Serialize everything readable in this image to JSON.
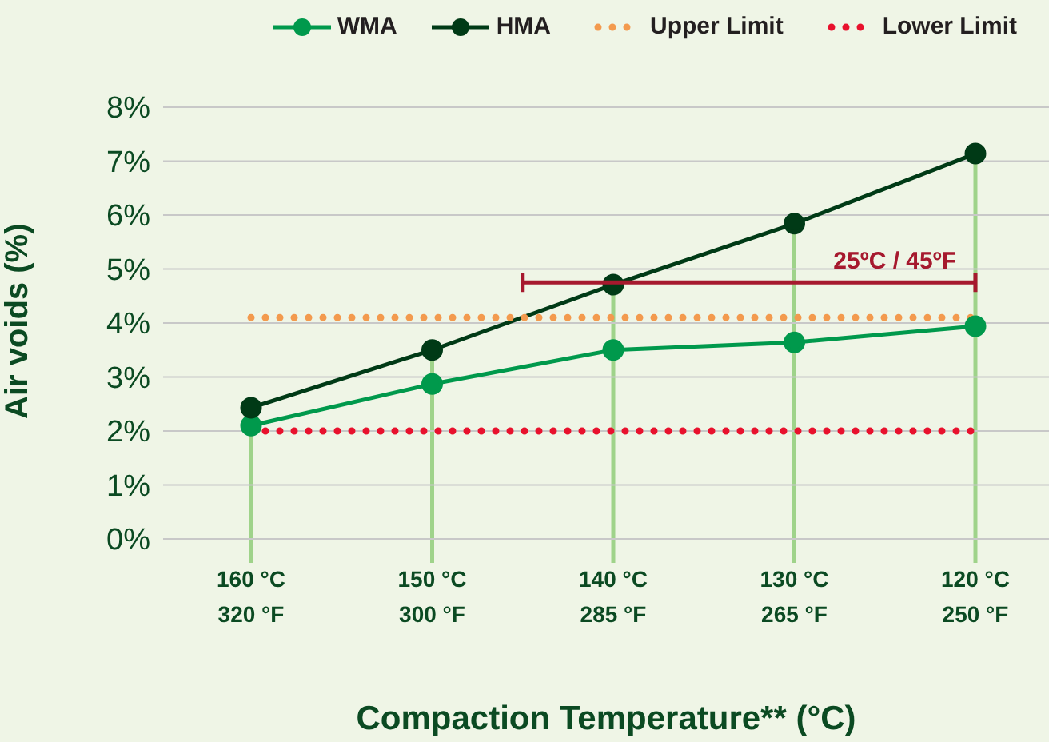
{
  "chart_data": {
    "type": "line",
    "xlabel": "Compaction Temperature** (°C)",
    "ylabel": "Air voids (%)",
    "categories": [
      "160 °C\n320 °F",
      "150 °C\n300 °F",
      "140 °C\n285 °F",
      "130 °C\n265 °F",
      "120 °C\n250 °F"
    ],
    "series": [
      {
        "name": "WMA",
        "color": "#00994c",
        "values": [
          2.1,
          2.87,
          3.5,
          3.64,
          3.94
        ]
      },
      {
        "name": "HMA",
        "color": "#003a16",
        "values": [
          2.43,
          3.5,
          4.71,
          5.84,
          7.14
        ]
      },
      {
        "name": "Upper Limit",
        "color": "#f39a4e",
        "values": [
          4.1,
          4.1,
          4.1,
          4.1,
          4.1
        ],
        "marker": "none",
        "line_style": "dotted"
      },
      {
        "name": "Lower Limit",
        "color": "#e8112d",
        "values": [
          2,
          2,
          2,
          2,
          2
        ],
        "marker": "none",
        "line_style": "dotted"
      }
    ],
    "ylim": [
      0,
      8
    ],
    "yticks": [
      {
        "value": 0,
        "label": "0%"
      },
      {
        "value": 1,
        "label": "1%"
      },
      {
        "value": 2,
        "label": "2%"
      },
      {
        "value": 3,
        "label": "3%"
      },
      {
        "value": 4,
        "label": "4%"
      },
      {
        "value": 5,
        "label": "5%"
      },
      {
        "value": 6,
        "label": "6%"
      },
      {
        "value": 7,
        "label": "7%"
      },
      {
        "value": 8,
        "label": "8%"
      }
    ],
    "grid": "y",
    "legend": "top right",
    "marker": "circle",
    "line_style": "solid",
    "ref_lines": [
      {
        "axis": "x",
        "value": "160 °C\n320 °F",
        "color": "#9fd38a"
      },
      {
        "axis": "x",
        "value": "150 °C\n300 °F",
        "color": "#9fd38a"
      },
      {
        "axis": "x",
        "value": "140 °C\n285 °F",
        "color": "#9fd38a"
      },
      {
        "axis": "x",
        "value": "130 °C\n265 °F",
        "color": "#9fd38a"
      },
      {
        "axis": "x",
        "value": "120 °C\n250 °F",
        "color": "#9fd38a"
      }
    ],
    "annotations": [
      "25ºC / 45ºF"
    ]
  }
}
